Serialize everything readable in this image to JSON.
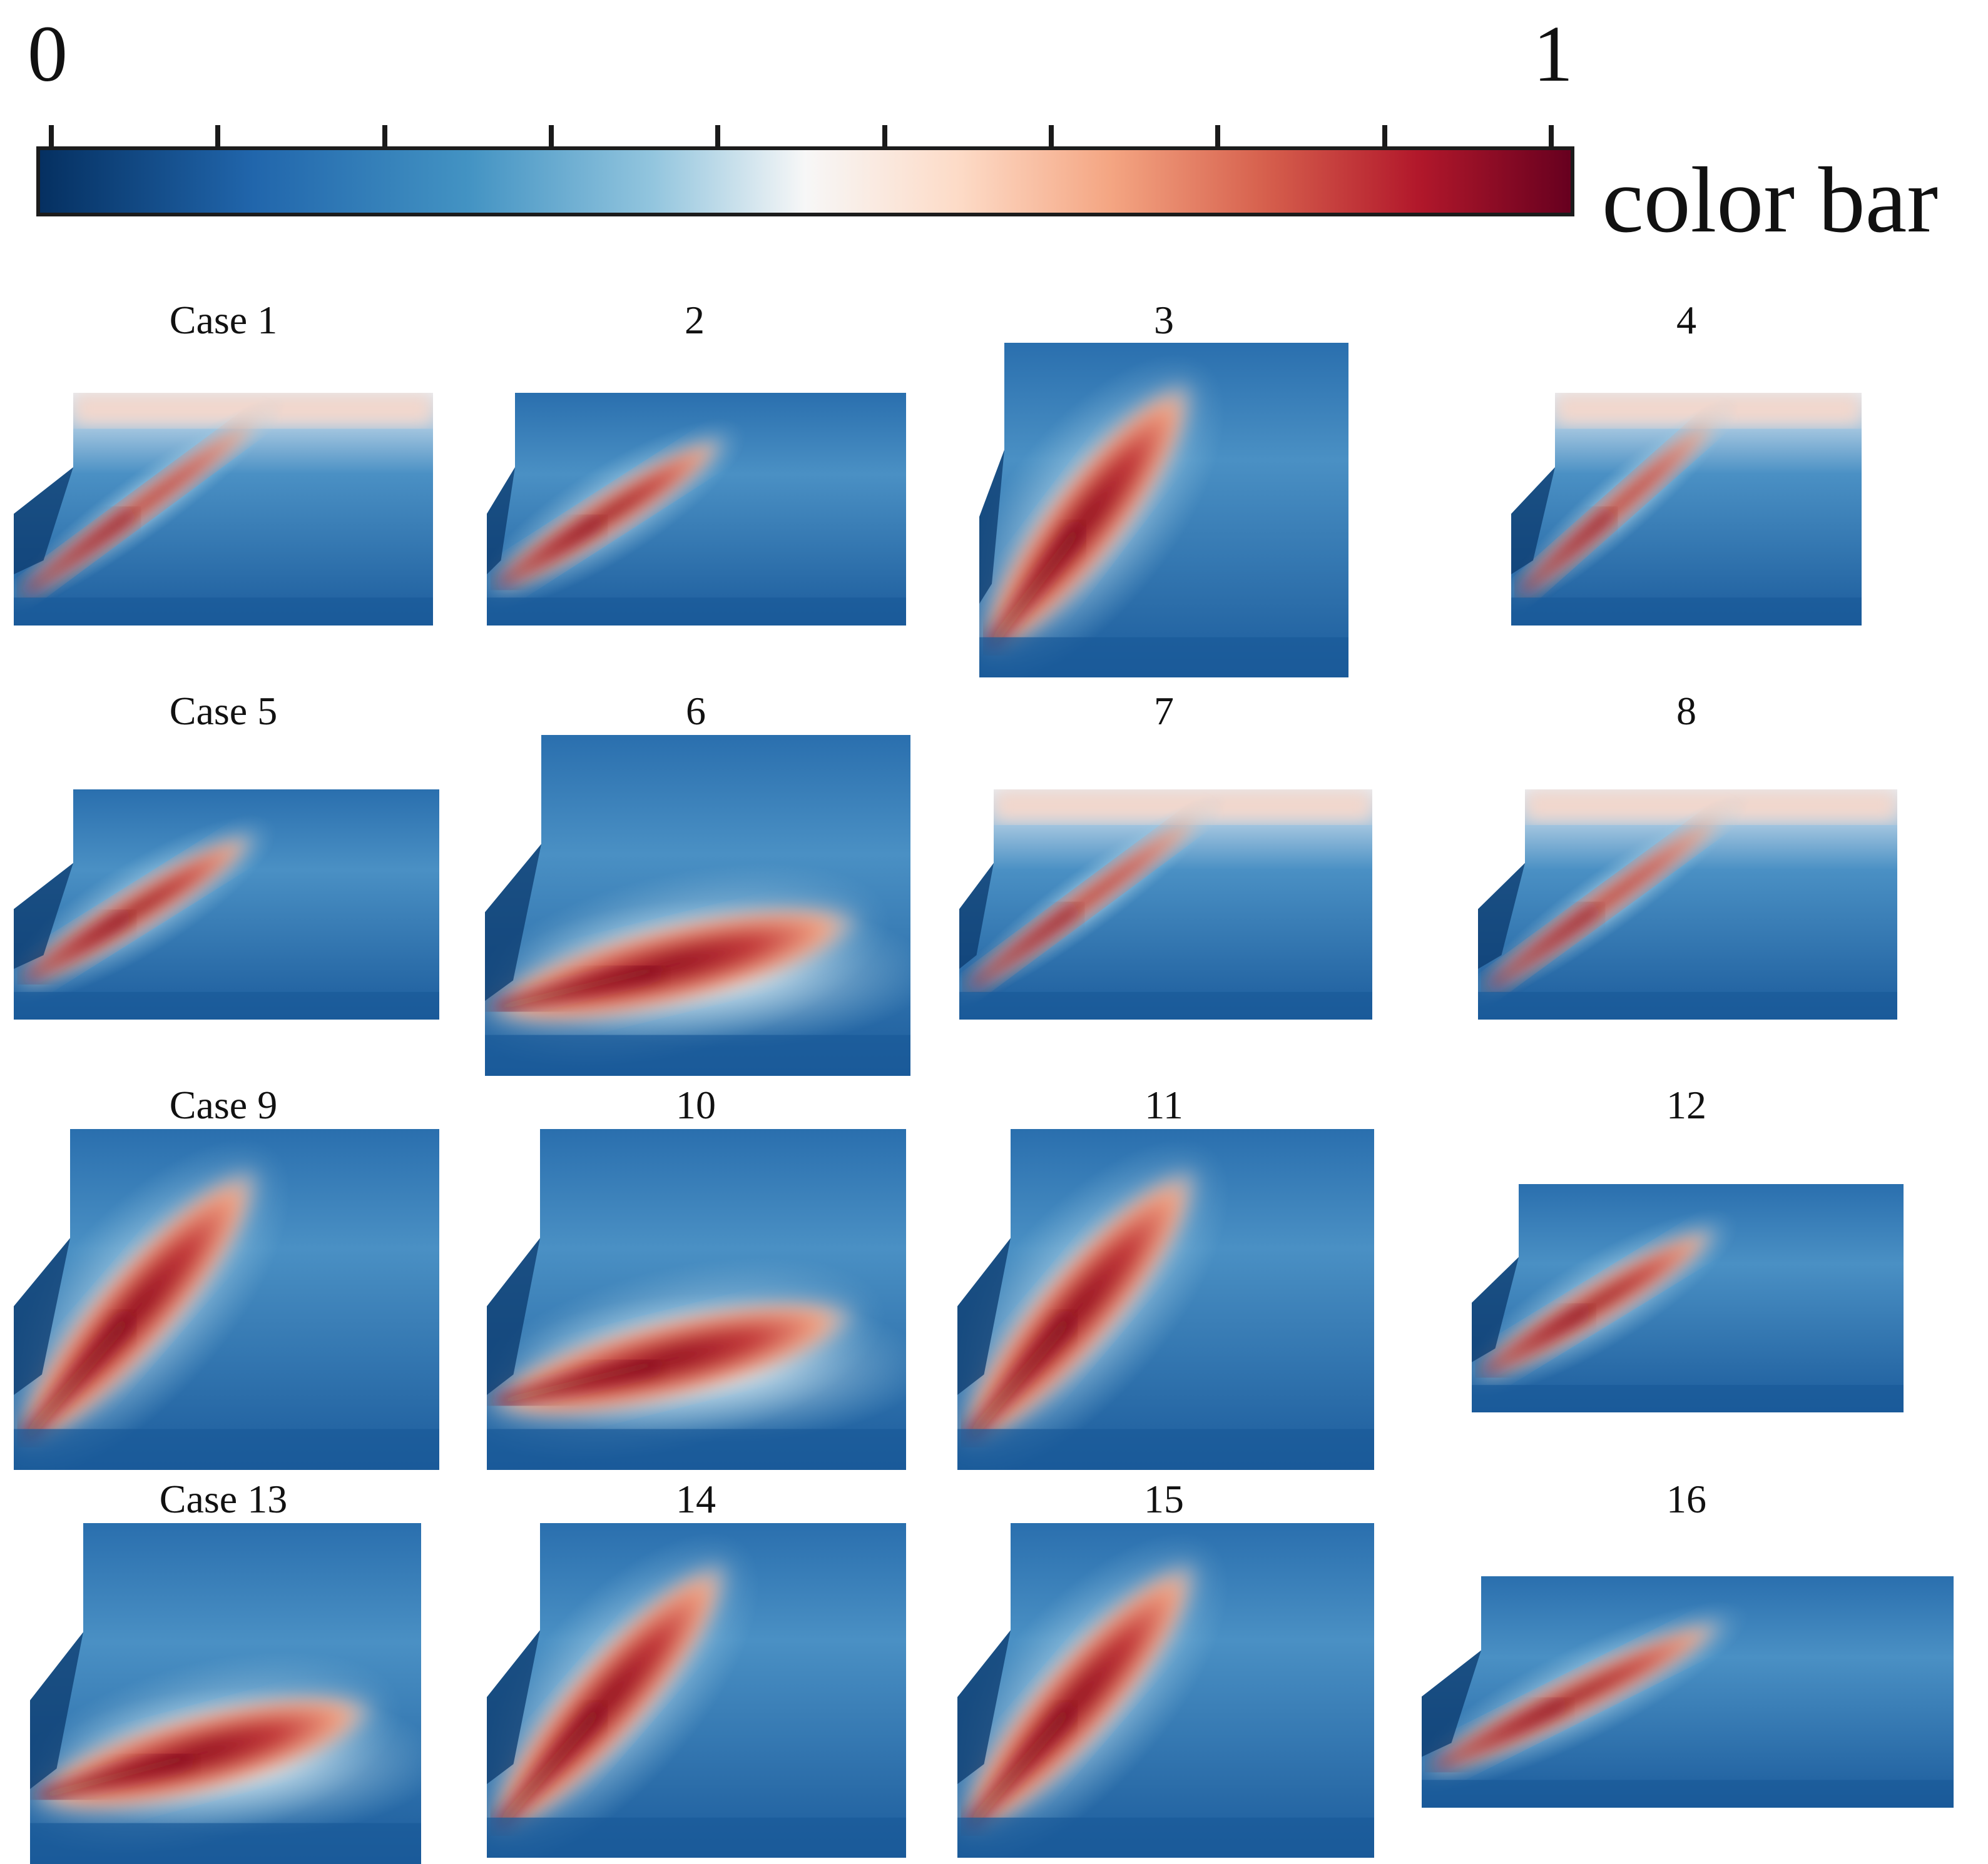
{
  "colorbar": {
    "min_label": "0",
    "max_label": "1",
    "title": "color bar",
    "tick_count": 10,
    "colormap": [
      "#053061",
      "#2166ac",
      "#4393c3",
      "#92c5de",
      "#f7f7f7",
      "#fddbc7",
      "#f4a582",
      "#d6604d",
      "#b2182b",
      "#67001f"
    ]
  },
  "cases": [
    {
      "label": "Case 1",
      "style": "jet-top"
    },
    {
      "label": "2",
      "style": "jet-lobe"
    },
    {
      "label": "3",
      "style": "jet-steep"
    },
    {
      "label": "4",
      "style": "jet-top"
    },
    {
      "label": "Case 5",
      "style": "jet-lobe"
    },
    {
      "label": "6",
      "style": "jet-flat"
    },
    {
      "label": "7",
      "style": "jet-top"
    },
    {
      "label": "8",
      "style": "jet-top"
    },
    {
      "label": "Case 9",
      "style": "jet-steep"
    },
    {
      "label": "10",
      "style": "jet-flat"
    },
    {
      "label": "11",
      "style": "jet-steep"
    },
    {
      "label": "12",
      "style": "jet-lobe"
    },
    {
      "label": "Case 13",
      "style": "jet-flat"
    },
    {
      "label": "14",
      "style": "jet-steep"
    },
    {
      "label": "15",
      "style": "jet-steep"
    },
    {
      "label": "16",
      "style": "jet-lobe"
    }
  ]
}
